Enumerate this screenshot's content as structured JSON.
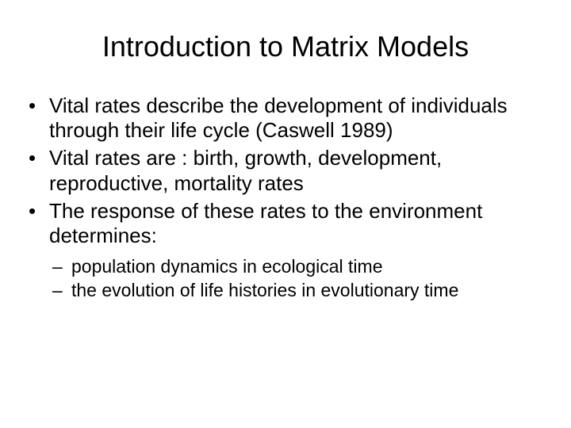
{
  "title": "Introduction to Matrix Models",
  "bullets": [
    {
      "text": "Vital rates describe the development of individuals through their life cycle (Caswell 1989)"
    },
    {
      "text": "Vital rates are : birth, growth, development, reproductive, mortality rates"
    },
    {
      "text": "The response of these rates  to the environment determines:",
      "sub": [
        "population dynamics in ecological time",
        "the evolution of life histories in evolutionary time"
      ]
    }
  ],
  "colors": {
    "background": "#ffffff",
    "text": "#000000"
  },
  "typography": {
    "title_fontsize": 36,
    "bullet_fontsize": 26,
    "sub_fontsize": 23,
    "font_family": "Arial"
  }
}
